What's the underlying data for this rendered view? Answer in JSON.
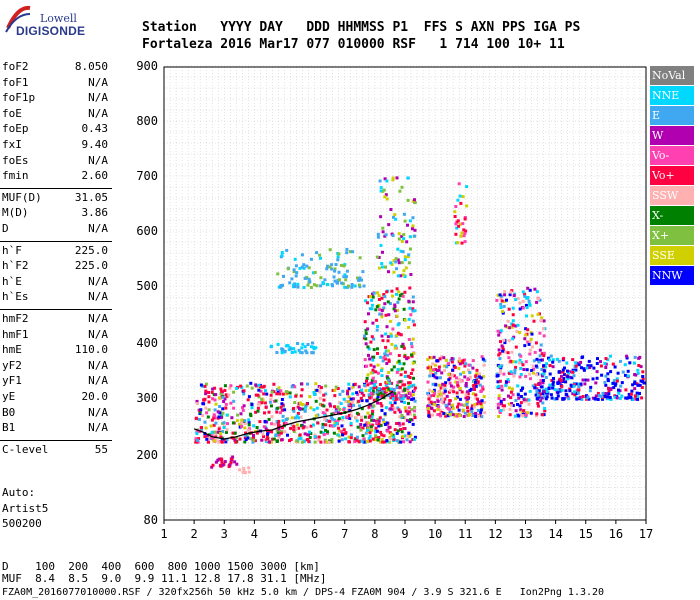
{
  "logo": {
    "top": "Lowell",
    "bottom": "DIGISONDE"
  },
  "header": {
    "line1": "Station   YYYY DAY   DDD HHMMSS P1  FFS S AXN PPS IGA PS",
    "line2": "Fortaleza 2016 Mar17 077 010000 RSF   1 714 100 10+ 11"
  },
  "params": [
    {
      "name": "foF2",
      "value": "8.050"
    },
    {
      "name": "foF1",
      "value": "N/A"
    },
    {
      "name": "foF1p",
      "value": "N/A"
    },
    {
      "name": "foE",
      "value": "N/A"
    },
    {
      "name": "foEp",
      "value": "0.43"
    },
    {
      "name": "fxI",
      "value": "9.40"
    },
    {
      "name": "foEs",
      "value": "N/A"
    },
    {
      "name": "fmin",
      "value": "2.60"
    },
    {
      "name": "MUF(D)",
      "value": "31.05"
    },
    {
      "name": "M(D)",
      "value": "3.86"
    },
    {
      "name": "D",
      "value": "N/A"
    },
    {
      "name": "h`F",
      "value": "225.0"
    },
    {
      "name": "h`F2",
      "value": "225.0"
    },
    {
      "name": "h`E",
      "value": "N/A"
    },
    {
      "name": "h`Es",
      "value": "N/A"
    },
    {
      "name": "hmF2",
      "value": "N/A"
    },
    {
      "name": "hmF1",
      "value": "N/A"
    },
    {
      "name": "hmE",
      "value": "110.0"
    },
    {
      "name": "yF2",
      "value": "N/A"
    },
    {
      "name": "yF1",
      "value": "N/A"
    },
    {
      "name": "yE",
      "value": "20.0"
    },
    {
      "name": "B0",
      "value": "N/A"
    },
    {
      "name": "B1",
      "value": "N/A"
    },
    {
      "name": "C-level",
      "value": "55"
    }
  ],
  "misc": {
    "auto": "Auto:",
    "artist": "Artist5",
    "code": "500200"
  },
  "legend": [
    {
      "label": "NoVal",
      "color": "#808080"
    },
    {
      "label": "NNE",
      "color": "#00d8ff"
    },
    {
      "label": "E",
      "color": "#40a8f0"
    },
    {
      "label": "W",
      "color": "#b000b0"
    },
    {
      "label": "Vo-",
      "color": "#ff40b0"
    },
    {
      "label": "Vo+",
      "color": "#ff0040"
    },
    {
      "label": "SSW",
      "color": "#ffb0b0"
    },
    {
      "label": "X-",
      "color": "#008000"
    },
    {
      "label": "X+",
      "color": "#80c040"
    },
    {
      "label": "SSE",
      "color": "#d0d000"
    },
    {
      "label": "NNW",
      "color": "#0000ff"
    }
  ],
  "footer": {
    "line1": "D    100  200  400  600  800 1000 1500 3000 [km]",
    "line2": "MUF  8.4  8.5  9.0  9.9 11.1 12.8 17.8 31.1 [MHz]",
    "line3": "FZA0M_2016077010000.RSF / 320fx256h 50 kHz 5.0 km / DPS-4 FZA0M 904 / 3.9 S 321.6 E   Ion2Png 1.3.20"
  },
  "chart_data": {
    "type": "scatter",
    "x_ticks": [
      1,
      2,
      3,
      4,
      5,
      6,
      7,
      8,
      9,
      10,
      11,
      12,
      13,
      14,
      15,
      16,
      17
    ],
    "y_ticks": [
      80,
      200,
      300,
      400,
      500,
      600,
      700,
      800,
      900
    ],
    "xlim": [
      1,
      17
    ],
    "ylim": [
      80,
      900
    ],
    "grid": true,
    "legend_position": "right",
    "trace": {
      "color": "#000000",
      "x": [
        2.0,
        2.3,
        2.6,
        3.0,
        3.4,
        3.8,
        4.2,
        4.6,
        5.0,
        5.4,
        5.8,
        6.2,
        6.6,
        7.0,
        7.4,
        7.8,
        8.2,
        8.6
      ],
      "y": [
        246,
        240,
        232,
        228,
        232,
        238,
        242,
        244,
        252,
        258,
        262,
        266,
        270,
        274,
        280,
        288,
        298,
        312
      ]
    },
    "clusters": [
      {
        "x": [
          2.0,
          9.3
        ],
        "y": [
          225,
          330
        ],
        "n": 850,
        "colors": [
          "#ff0040",
          "#ff0040",
          "#ff0040",
          "#40a8f0",
          "#b000b0",
          "#ff40b0",
          "#00d8ff",
          "#d0d000",
          "#80c040",
          "#0000ff",
          "#ffb0b0",
          "#008000"
        ]
      },
      {
        "x": [
          7.6,
          9.3
        ],
        "y": [
          300,
          500
        ],
        "n": 280,
        "colors": [
          "#ff0040",
          "#ff0040",
          "#b000b0",
          "#ff40b0",
          "#d0d000",
          "#40a8f0",
          "#00d8ff",
          "#008000"
        ]
      },
      {
        "x": [
          8.0,
          9.3
        ],
        "y": [
          520,
          700
        ],
        "n": 90,
        "colors": [
          "#d0d000",
          "#00d8ff",
          "#40a8f0",
          "#80c040",
          "#b000b0"
        ]
      },
      {
        "x": [
          4.7,
          7.6
        ],
        "y": [
          500,
          570
        ],
        "n": 110,
        "colors": [
          "#40a8f0",
          "#00d8ff",
          "#40a8f0",
          "#80c040"
        ]
      },
      {
        "x": [
          4.5,
          6.0
        ],
        "y": [
          385,
          405
        ],
        "n": 40,
        "colors": [
          "#40a8f0",
          "#00d8ff"
        ]
      },
      {
        "x": [
          9.7,
          11.6
        ],
        "y": [
          270,
          380
        ],
        "n": 300,
        "colors": [
          "#ff0040",
          "#ff0040",
          "#ff40b0",
          "#b000b0",
          "#d0d000",
          "#0000ff",
          "#40a8f0",
          "#ffb0b0"
        ]
      },
      {
        "x": [
          10.6,
          11.0
        ],
        "y": [
          580,
          700
        ],
        "n": 30,
        "colors": [
          "#ff40b0",
          "#d0d000",
          "#00d8ff",
          "#ff0040"
        ]
      },
      {
        "x": [
          12.0,
          13.6
        ],
        "y": [
          270,
          500
        ],
        "n": 290,
        "colors": [
          "#b000b0",
          "#ff0040",
          "#0000ff",
          "#40a8f0",
          "#d0d000",
          "#ff40b0",
          "#00d8ff",
          "#ffb0b0"
        ]
      },
      {
        "x": [
          13.3,
          16.9
        ],
        "y": [
          300,
          380
        ],
        "n": 300,
        "colors": [
          "#0000ff",
          "#0000ff",
          "#0000ff",
          "#40a8f0",
          "#00d8ff",
          "#b000b0",
          "#ff0040"
        ]
      },
      {
        "x": [
          2.5,
          3.4
        ],
        "y": [
          180,
          200
        ],
        "n": 25,
        "colors": [
          "#ff0040",
          "#b000b0"
        ]
      },
      {
        "x": [
          3.4,
          3.8
        ],
        "y": [
          170,
          180
        ],
        "n": 10,
        "colors": [
          "#ffb0b0"
        ]
      }
    ]
  }
}
